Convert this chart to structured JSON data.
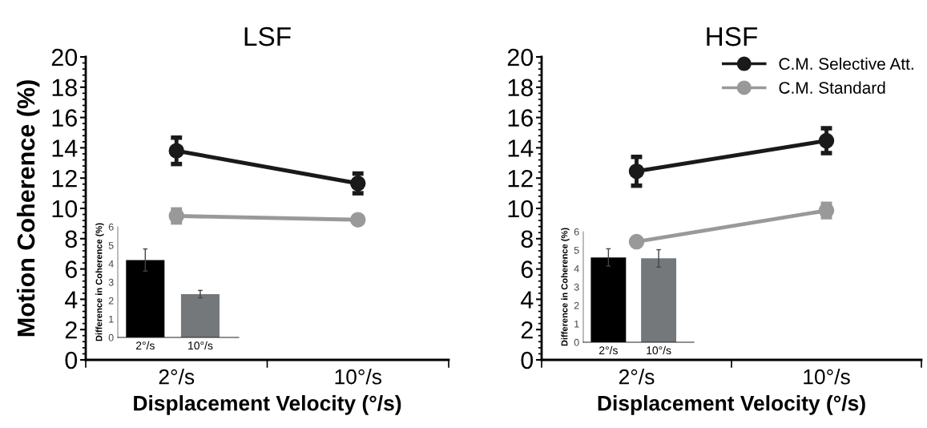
{
  "chart_data": [
    {
      "type": "line",
      "title": "LSF",
      "xlabel": "Displacement Velocity (°/s)",
      "ylabel": "Motion Coherence (%)",
      "categories": [
        "2°/s",
        "10°/s"
      ],
      "ylim": [
        0,
        20
      ],
      "yticks": [
        0,
        2,
        4,
        6,
        8,
        10,
        12,
        14,
        16,
        18,
        20
      ],
      "marker": "circle",
      "legend": false,
      "series": [
        {
          "color": "#1a1a1a",
          "values": [
            13.8,
            11.65
          ],
          "errors": [
            0.87,
            0.65
          ]
        },
        {
          "color": "#999999",
          "values": [
            9.5,
            9.25
          ],
          "errors": [
            0.43,
            0.2
          ]
        }
      ]
    },
    {
      "type": "bar",
      "ylabel": "Difference in Coherence (%)",
      "categories": [
        "2°/s",
        "10°/s"
      ],
      "values": [
        4.2,
        2.35
      ],
      "errors": [
        0.6,
        0.2
      ],
      "colors": [
        "#000000",
        "#75787b"
      ],
      "ylim": [
        0,
        6
      ],
      "yticks": [
        0,
        1,
        2,
        3,
        4,
        5,
        6
      ]
    },
    {
      "type": "line",
      "title": "HSF",
      "xlabel": "Displacement Velocity (°/s)",
      "categories": [
        "2°/s",
        "10°/s"
      ],
      "ylim": [
        0,
        20
      ],
      "yticks": [
        0,
        2,
        4,
        6,
        8,
        10,
        12,
        14,
        16,
        18,
        20
      ],
      "marker": "circle",
      "legend": "top right",
      "series": [
        {
          "name": "C.M. Selective Att.",
          "color": "#1a1a1a",
          "values": [
            12.45,
            14.47
          ],
          "errors": [
            0.95,
            0.82
          ]
        },
        {
          "name": "C.M. Standard",
          "color": "#999999",
          "values": [
            7.8,
            9.86
          ],
          "errors": [
            null,
            0.44
          ]
        }
      ]
    },
    {
      "type": "bar",
      "ylabel": "Difference in Coherence (%)",
      "categories": [
        "2°/s",
        "10°/s"
      ],
      "values": [
        4.6,
        4.55
      ],
      "errors": [
        0.47,
        0.47
      ],
      "colors": [
        "#000000",
        "#75787b"
      ],
      "ylim": [
        0,
        6
      ],
      "yticks": [
        0,
        1,
        2,
        3,
        4,
        5,
        6
      ]
    }
  ]
}
